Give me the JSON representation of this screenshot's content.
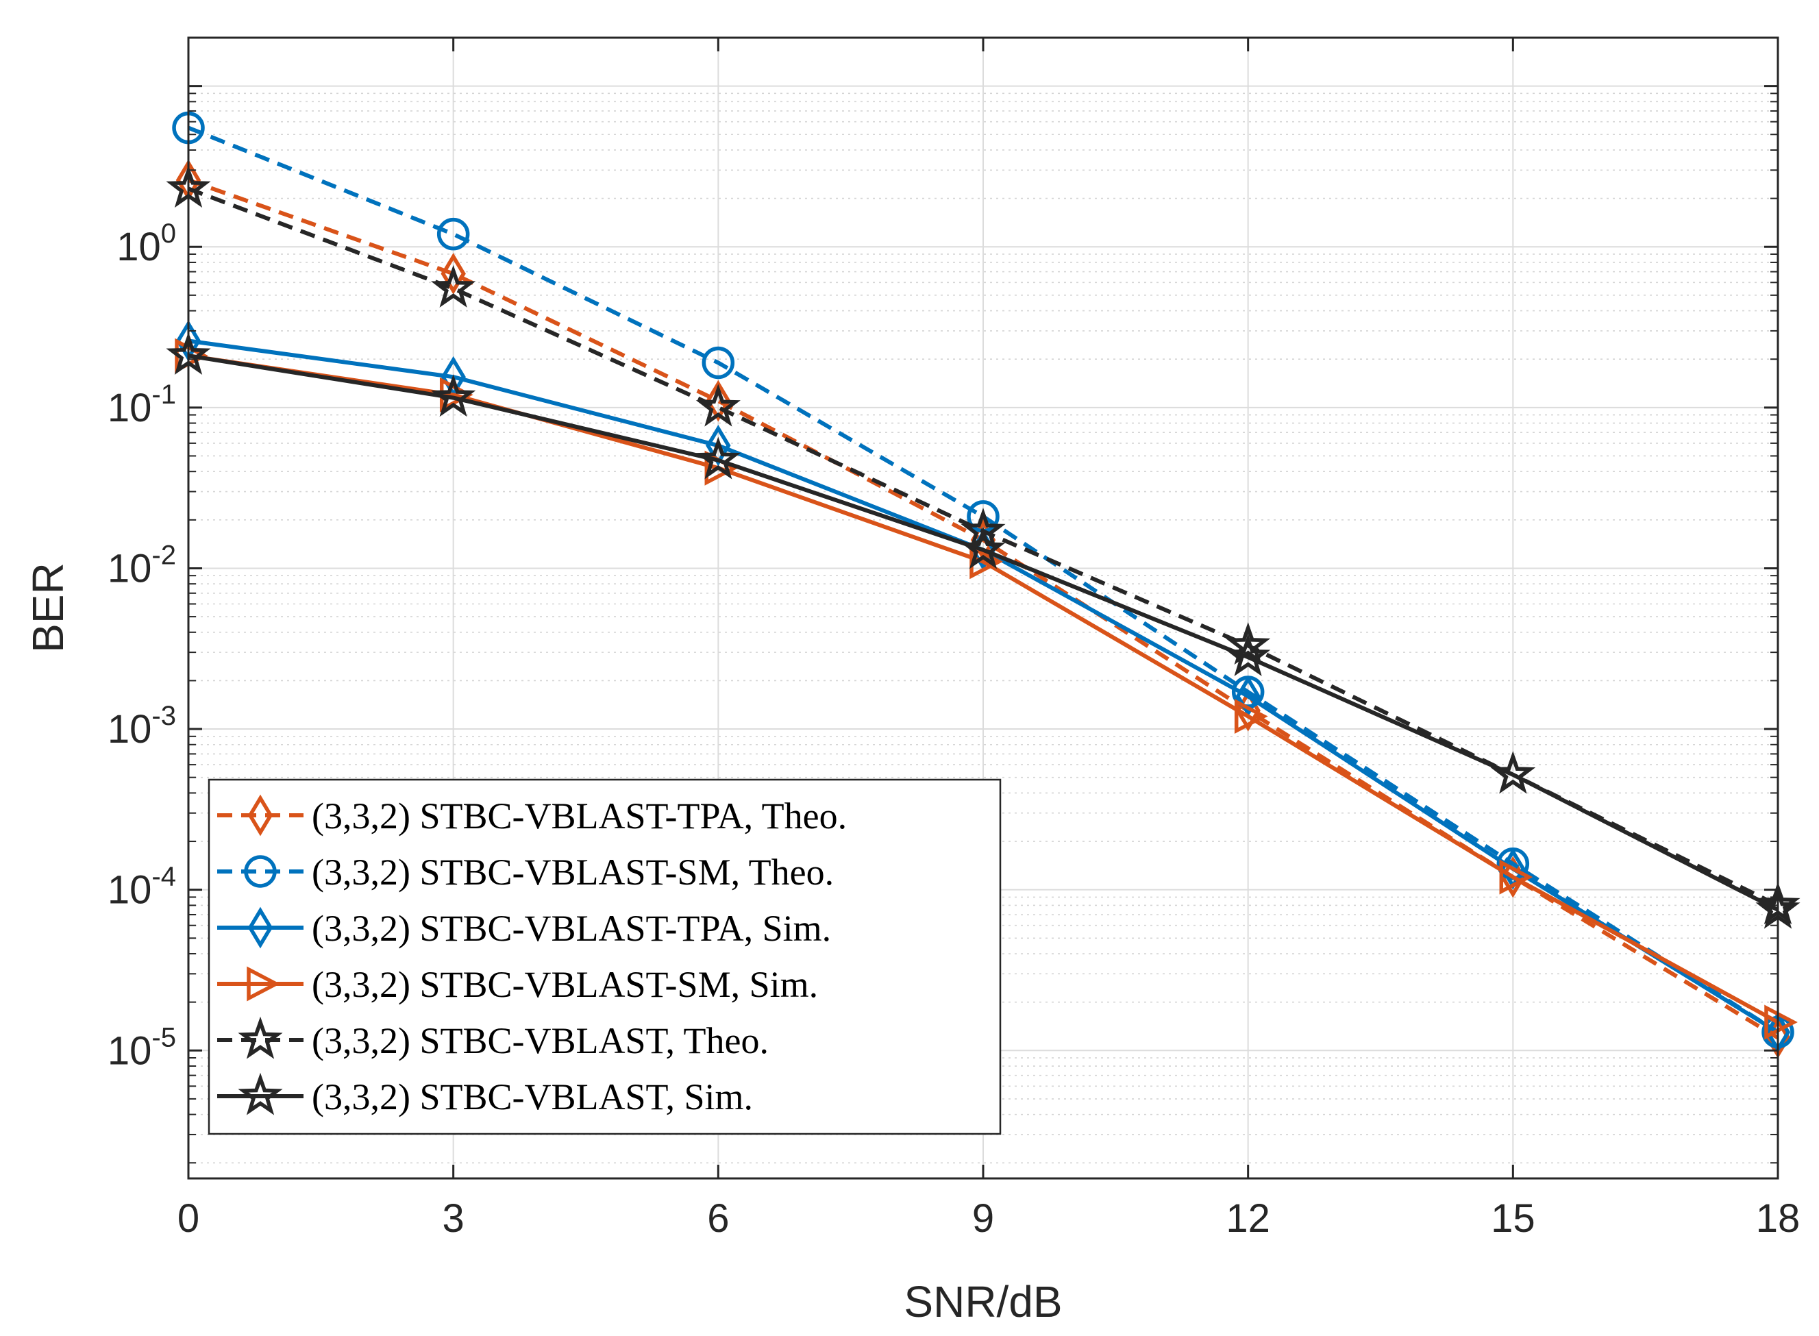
{
  "chart_data": {
    "type": "line",
    "title": "",
    "xlabel": "SNR/dB",
    "ylabel": "BER",
    "xscale": "linear",
    "yscale": "log",
    "xlim": [
      0,
      18
    ],
    "ylim": [
      1.6e-06,
      20
    ],
    "xticks": [
      0,
      3,
      6,
      9,
      12,
      15,
      18
    ],
    "yticks": [
      {
        "value": 1,
        "base": "10",
        "exp": "0"
      },
      {
        "value": 0.1,
        "base": "10",
        "exp": "-1"
      },
      {
        "value": 0.01,
        "base": "10",
        "exp": "-2"
      },
      {
        "value": 0.001,
        "base": "10",
        "exp": "-3"
      },
      {
        "value": 0.0001,
        "base": "10",
        "exp": "-4"
      },
      {
        "value": 1e-05,
        "base": "10",
        "exp": "-5"
      }
    ],
    "grid": true,
    "minor_grid": true,
    "legend_position": "bottom-left",
    "x": [
      0,
      3,
      6,
      9,
      12,
      15,
      18
    ],
    "series": [
      {
        "name": "(3,3,2) STBC-VBLAST-TPA, Theo.",
        "color": "#D95319",
        "dash": "dashed",
        "marker": "diamond",
        "values": [
          2.6,
          0.68,
          0.11,
          0.015,
          0.0013,
          0.00012,
          1.2e-05
        ]
      },
      {
        "name": "(3,3,2) STBC-VBLAST-SM, Theo.",
        "color": "#0072BD",
        "dash": "dashed",
        "marker": "circle",
        "values": [
          5.5,
          1.2,
          0.19,
          0.021,
          0.0017,
          0.000145,
          1.3e-05
        ]
      },
      {
        "name": "(3,3,2) STBC-VBLAST-TPA, Sim.",
        "color": "#0072BD",
        "dash": "solid",
        "marker": "diamond",
        "values": [
          0.26,
          0.155,
          0.058,
          0.013,
          0.0016,
          0.000135,
          1.3e-05
        ]
      },
      {
        "name": "(3,3,2) STBC-VBLAST-SM, Sim.",
        "color": "#D95319",
        "dash": "solid",
        "marker": "triangle-right",
        "values": [
          0.21,
          0.12,
          0.042,
          0.011,
          0.0012,
          0.00012,
          1.5e-05
        ]
      },
      {
        "name": "(3,3,2) STBC-VBLAST, Theo.",
        "color": "#262626",
        "dash": "dashed",
        "marker": "pentagram",
        "values": [
          2.3,
          0.55,
          0.1,
          0.017,
          0.0033,
          0.00052,
          8e-05
        ]
      },
      {
        "name": "(3,3,2) STBC-VBLAST, Sim.",
        "color": "#262626",
        "dash": "solid",
        "marker": "pentagram",
        "values": [
          0.21,
          0.115,
          0.047,
          0.013,
          0.0028,
          0.00052,
          7.5e-05
        ]
      }
    ]
  }
}
